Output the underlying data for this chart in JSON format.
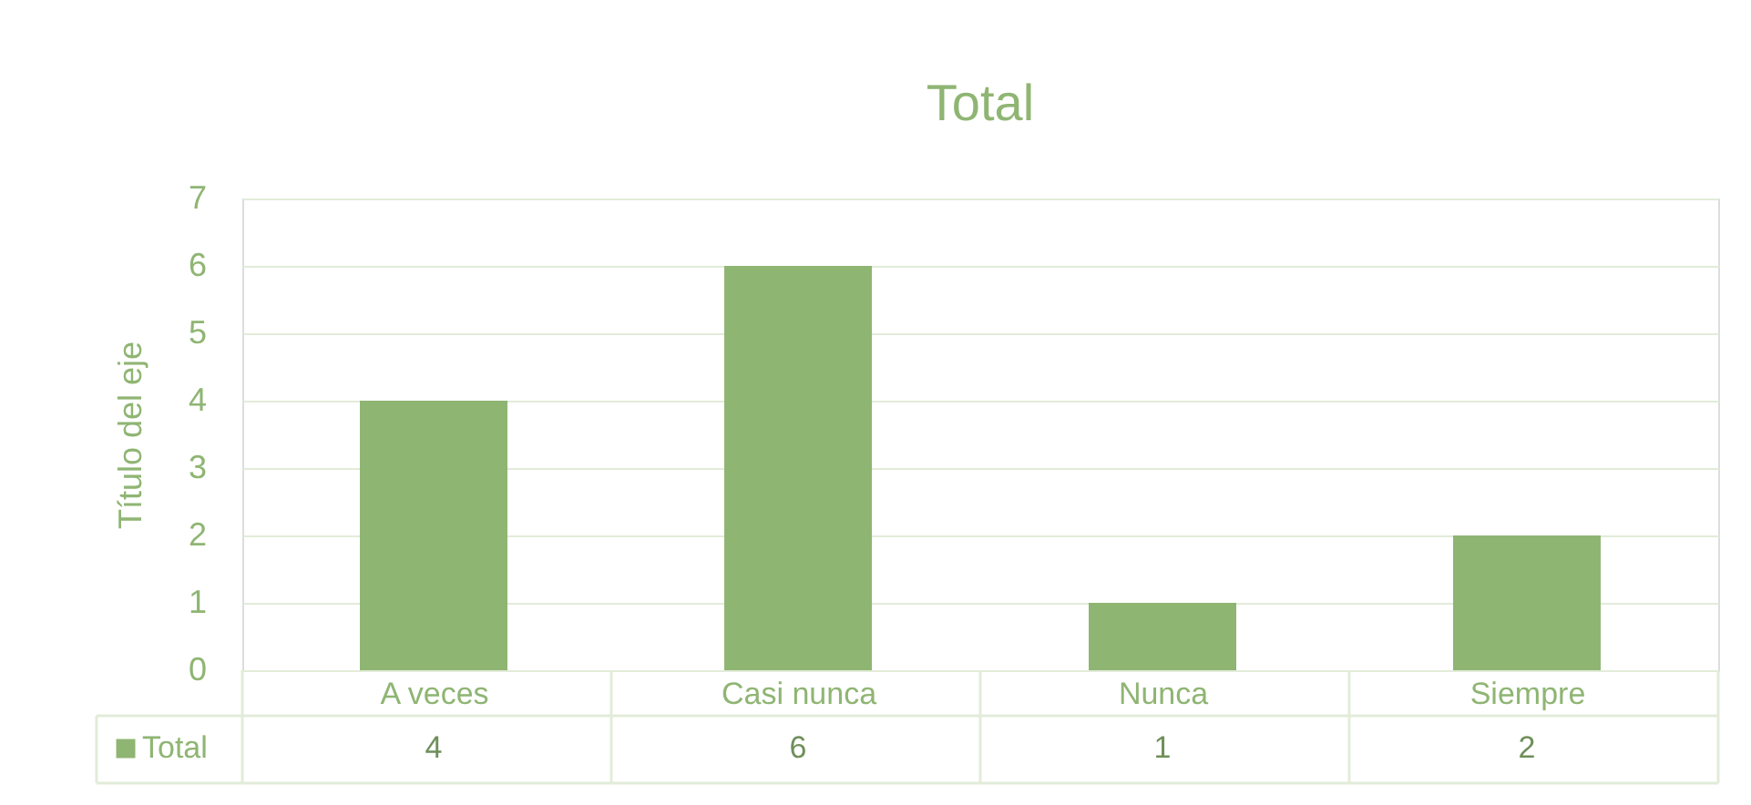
{
  "chart_data": {
    "type": "bar",
    "title": "Total",
    "ylabel": "Título del eje",
    "categories": [
      "A veces",
      "Casi nunca",
      "Nunca",
      "Siempre"
    ],
    "series": [
      {
        "name": "Total",
        "color": "#8fb573",
        "values": [
          4,
          6,
          1,
          2
        ]
      }
    ],
    "ylim": [
      0,
      7
    ],
    "yticks": [
      0,
      1,
      2,
      3,
      4,
      5,
      6,
      7
    ],
    "grid": "y",
    "data_labels": true,
    "legend": "bottom left"
  }
}
